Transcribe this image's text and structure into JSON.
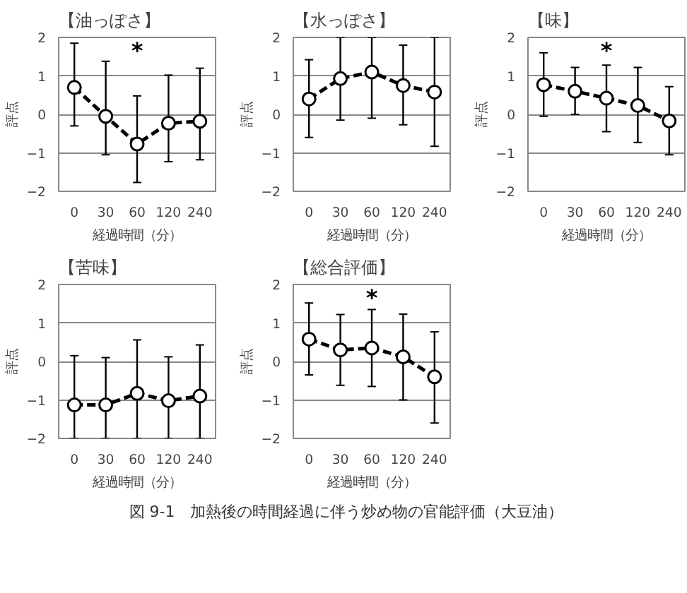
{
  "chart_data": [
    {
      "type": "line",
      "title": "【油っぽさ】",
      "xlabel": "経過時間（分）",
      "ylabel": "評点",
      "categories": [
        "0",
        "30",
        "60",
        "120",
        "240"
      ],
      "ylim": [
        -2,
        2
      ],
      "yticks": [
        -2,
        -1,
        0,
        1,
        2
      ],
      "grid": "y",
      "marker": "circle",
      "line_style": "dashed",
      "series": [
        {
          "color": "#000000",
          "values": [
            0.7,
            -0.05,
            -0.77,
            -0.23,
            -0.18
          ],
          "errors": [
            [
              -0.3,
              1.85
            ],
            [
              -1.05,
              1.38
            ],
            [
              -1.77,
              0.48
            ],
            [
              -1.23,
              1.02
            ],
            [
              -1.18,
              1.2
            ]
          ]
        }
      ],
      "annotations": [
        "*"
      ]
    },
    {
      "type": "line",
      "title": "【水っぽさ】",
      "xlabel": "経過時間（分）",
      "ylabel": "評点",
      "categories": [
        "0",
        "30",
        "60",
        "120",
        "240"
      ],
      "ylim": [
        -2,
        2
      ],
      "yticks": [
        -2,
        -1,
        0,
        1,
        2
      ],
      "grid": "y",
      "marker": "circle",
      "line_style": "dashed",
      "series": [
        {
          "color": "#000000",
          "values": [
            0.4,
            0.93,
            1.1,
            0.75,
            0.58
          ],
          "errors": [
            [
              -0.6,
              1.42
            ],
            [
              -0.15,
              2
            ],
            [
              -0.1,
              2
            ],
            [
              -0.27,
              1.8
            ],
            [
              -0.83,
              2
            ]
          ]
        }
      ]
    },
    {
      "type": "line",
      "title": "【味】",
      "xlabel": "経過時間（分）",
      "ylabel": "評点",
      "categories": [
        "0",
        "30",
        "60",
        "120",
        "240"
      ],
      "ylim": [
        -2,
        2
      ],
      "yticks": [
        -2,
        -1,
        0,
        1,
        2
      ],
      "grid": "y",
      "marker": "circle",
      "line_style": "dashed",
      "series": [
        {
          "color": "#000000",
          "values": [
            0.77,
            0.6,
            0.42,
            0.23,
            -0.17
          ],
          "errors": [
            [
              -0.05,
              1.6
            ],
            [
              0,
              1.22
            ],
            [
              -0.45,
              1.28
            ],
            [
              -0.73,
              1.22
            ],
            [
              -1.05,
              0.72
            ]
          ]
        }
      ],
      "annotations": [
        "*"
      ]
    },
    {
      "type": "line",
      "title": "【苦味】",
      "xlabel": "経過時間（分）",
      "ylabel": "評点",
      "categories": [
        "0",
        "30",
        "60",
        "120",
        "240"
      ],
      "ylim": [
        -2,
        2
      ],
      "yticks": [
        -2,
        -1,
        0,
        1,
        2
      ],
      "grid": "y",
      "marker": "circle",
      "line_style": "dashed",
      "series": [
        {
          "color": "#000000",
          "values": [
            -1.13,
            -1.13,
            -0.83,
            -1.02,
            -0.9
          ],
          "errors": [
            [
              -2,
              0.15
            ],
            [
              -2,
              0.1
            ],
            [
              -2,
              0.56
            ],
            [
              -2,
              0.12
            ],
            [
              -2,
              0.43
            ]
          ]
        }
      ]
    },
    {
      "type": "line",
      "title": "【総合評価】",
      "xlabel": "経過時間（分）",
      "ylabel": "評点",
      "categories": [
        "0",
        "30",
        "60",
        "120",
        "240"
      ],
      "ylim": [
        -2,
        2
      ],
      "yticks": [
        -2,
        -1,
        0,
        1,
        2
      ],
      "grid": "y",
      "marker": "circle",
      "line_style": "dashed",
      "series": [
        {
          "color": "#000000",
          "values": [
            0.58,
            0.3,
            0.35,
            0.12,
            -0.4
          ],
          "errors": [
            [
              -0.35,
              1.52
            ],
            [
              -0.62,
              1.22
            ],
            [
              -0.65,
              1.35
            ],
            [
              -1,
              1.23
            ],
            [
              -1.6,
              0.77
            ]
          ]
        }
      ],
      "annotations": [
        "*",
        "図 9-1　加熱後の時間経過に伴う炒め物の官能評価（大豆油）"
      ]
    }
  ]
}
